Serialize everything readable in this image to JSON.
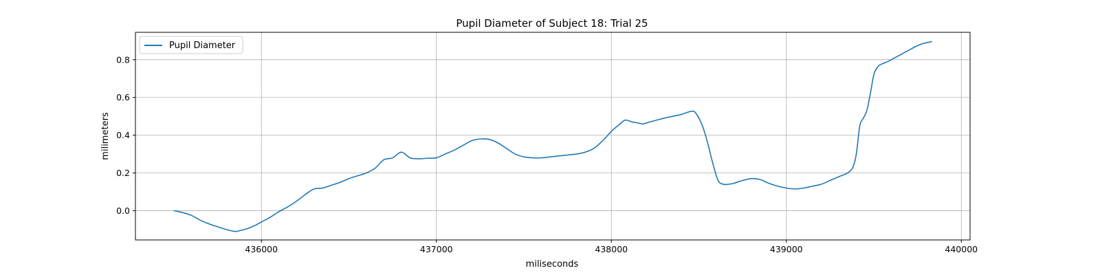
{
  "chart_data": {
    "type": "line",
    "title": "Pupil Diameter of Subject 18: Trial 25",
    "xlabel": "miliseconds",
    "ylabel": "milimeters",
    "xlim": [
      435280,
      440050
    ],
    "ylim": [
      -0.155,
      0.945
    ],
    "xticks": [
      436000,
      437000,
      438000,
      439000,
      440000
    ],
    "xtick_labels": [
      "436000",
      "437000",
      "438000",
      "439000",
      "440000"
    ],
    "yticks": [
      0.0,
      0.2,
      0.4,
      0.6,
      0.8
    ],
    "ytick_labels": [
      "0.0",
      "0.2",
      "0.4",
      "0.6",
      "0.8"
    ],
    "grid": true,
    "legend": {
      "position": "top-left",
      "entries": [
        "Pupil Diameter"
      ]
    },
    "series": [
      {
        "name": "Pupil Diameter",
        "color": "#1f77b4",
        "x": [
          435500,
          435550,
          435600,
          435650,
          435700,
          435750,
          435800,
          435850,
          435880,
          435920,
          435960,
          436000,
          436050,
          436100,
          436150,
          436200,
          436250,
          436300,
          436350,
          436400,
          436450,
          436500,
          436550,
          436600,
          436650,
          436700,
          436750,
          436800,
          436850,
          436900,
          436950,
          437000,
          437050,
          437100,
          437150,
          437200,
          437250,
          437300,
          437350,
          437400,
          437450,
          437500,
          437550,
          437600,
          437650,
          437700,
          437750,
          437800,
          437850,
          437900,
          437950,
          438000,
          438050,
          438080,
          438120,
          438150,
          438180,
          438220,
          438260,
          438300,
          438350,
          438400,
          438450,
          438480,
          438520,
          438550,
          438580,
          438610,
          438640,
          438670,
          438700,
          438750,
          438800,
          438850,
          438900,
          438950,
          439000,
          439050,
          439100,
          439150,
          439200,
          439250,
          439300,
          439350,
          439380,
          439400,
          439420,
          439440,
          439460,
          439480,
          439500,
          439520,
          439540,
          439580,
          439620,
          439660,
          439700,
          439740,
          439780,
          439830
        ],
        "y": [
          0.0,
          -0.01,
          -0.025,
          -0.05,
          -0.07,
          -0.085,
          -0.1,
          -0.11,
          -0.105,
          -0.095,
          -0.08,
          -0.06,
          -0.035,
          -0.005,
          0.02,
          0.05,
          0.085,
          0.115,
          0.12,
          0.135,
          0.15,
          0.17,
          0.185,
          0.2,
          0.225,
          0.27,
          0.28,
          0.31,
          0.28,
          0.275,
          0.278,
          0.28,
          0.3,
          0.32,
          0.345,
          0.37,
          0.38,
          0.378,
          0.36,
          0.33,
          0.3,
          0.285,
          0.28,
          0.28,
          0.285,
          0.29,
          0.295,
          0.3,
          0.31,
          0.33,
          0.37,
          0.42,
          0.46,
          0.48,
          0.47,
          0.465,
          0.46,
          0.47,
          0.48,
          0.49,
          0.5,
          0.51,
          0.525,
          0.52,
          0.45,
          0.36,
          0.25,
          0.16,
          0.14,
          0.14,
          0.145,
          0.16,
          0.17,
          0.165,
          0.145,
          0.13,
          0.12,
          0.115,
          0.12,
          0.13,
          0.14,
          0.16,
          0.18,
          0.2,
          0.23,
          0.3,
          0.45,
          0.49,
          0.53,
          0.62,
          0.72,
          0.76,
          0.775,
          0.79,
          0.81,
          0.83,
          0.85,
          0.87,
          0.885,
          0.895
        ]
      }
    ]
  }
}
